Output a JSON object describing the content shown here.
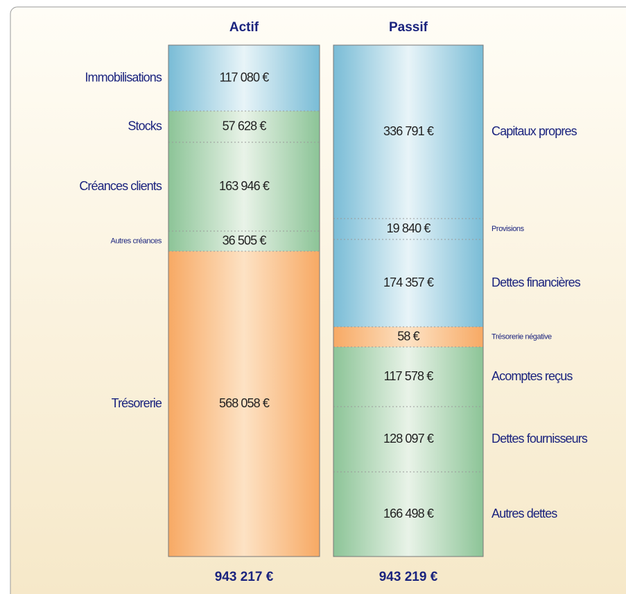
{
  "headers": {
    "actif": "Actif",
    "passif": "Passif"
  },
  "actif": [
    {
      "label": "Immobilisations",
      "amount": "117 080 €"
    },
    {
      "label": "Stocks",
      "amount": "57 628 €"
    },
    {
      "label": "Créances clients",
      "amount": "163 946 €"
    },
    {
      "label": "Autres créances",
      "amount": "36 505 €"
    },
    {
      "label": "Trésorerie",
      "amount": "568 058 €"
    }
  ],
  "passif": [
    {
      "label": "Capitaux propres",
      "amount": "336 791 €"
    },
    {
      "label": "Provisions",
      "amount": "19 840 €"
    },
    {
      "label": "Dettes financières",
      "amount": "174 357 €"
    },
    {
      "label": "Trésorerie négative",
      "amount": "58 €"
    },
    {
      "label": "Acomptes reçus",
      "amount": "117 578 €"
    },
    {
      "label": "Dettes fournisseurs",
      "amount": "128 097 €"
    },
    {
      "label": "Autres dettes",
      "amount": "166 498 €"
    }
  ],
  "totals": {
    "actif": "943 217 €",
    "passif": "943 219 €"
  }
}
